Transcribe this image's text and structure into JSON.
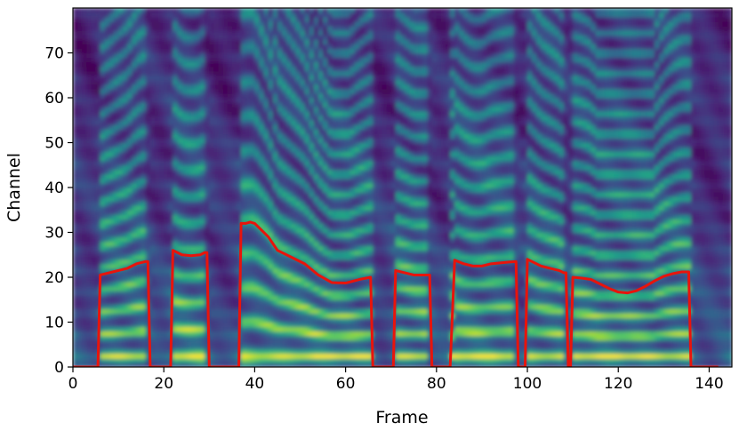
{
  "chart_data": {
    "type": "heatmap",
    "xlabel": "Frame",
    "ylabel": "Channel",
    "xlim": [
      0,
      145
    ],
    "ylim": [
      0,
      80
    ],
    "x_ticks": [
      0,
      20,
      40,
      60,
      80,
      100,
      120,
      140
    ],
    "y_ticks": [
      0,
      10,
      20,
      30,
      40,
      50,
      60,
      70
    ],
    "colormap": "viridis",
    "overlay_color": "#e8140c",
    "overlay": {
      "type": "line",
      "x": [
        0,
        5.5,
        6,
        8,
        10,
        12,
        14,
        16,
        16.5,
        17,
        21,
        21.5,
        22,
        24,
        26,
        28,
        29,
        29.5,
        30,
        36.5,
        37,
        38,
        39,
        40,
        41,
        43,
        45,
        48,
        51,
        54,
        57,
        60,
        63,
        65.5,
        66,
        70,
        70.5,
        71,
        73,
        75,
        77,
        78.5,
        79,
        82.5,
        83,
        84,
        86,
        88,
        90,
        92,
        94,
        96,
        97.5,
        98,
        99.5,
        100,
        101,
        103,
        105,
        107,
        108,
        108.5,
        109,
        109.5,
        110,
        112,
        114,
        116,
        118,
        120,
        122,
        124,
        126,
        128,
        130,
        132,
        134,
        135.5,
        136,
        142
      ],
      "y": [
        0,
        0,
        20.5,
        21,
        21.5,
        22,
        23,
        23.5,
        23.5,
        0,
        0,
        0,
        26,
        25,
        24.8,
        25,
        25.5,
        25.5,
        0,
        0,
        32,
        32,
        32.3,
        32,
        31,
        29,
        26,
        24.5,
        23,
        20.5,
        18.8,
        18.7,
        19.5,
        20,
        0,
        0,
        0,
        21.5,
        21,
        20.5,
        20.5,
        20.5,
        0,
        0,
        0,
        23.8,
        23,
        22.5,
        22.5,
        23,
        23.2,
        23.4,
        23.5,
        0,
        0,
        24,
        23.5,
        22.5,
        22,
        21.5,
        21,
        21,
        0,
        0,
        20,
        19.8,
        19.5,
        18.5,
        17.5,
        16.7,
        16.5,
        17,
        18,
        19.2,
        20.2,
        20.8,
        21.2,
        21.2,
        0,
        0
      ]
    }
  }
}
